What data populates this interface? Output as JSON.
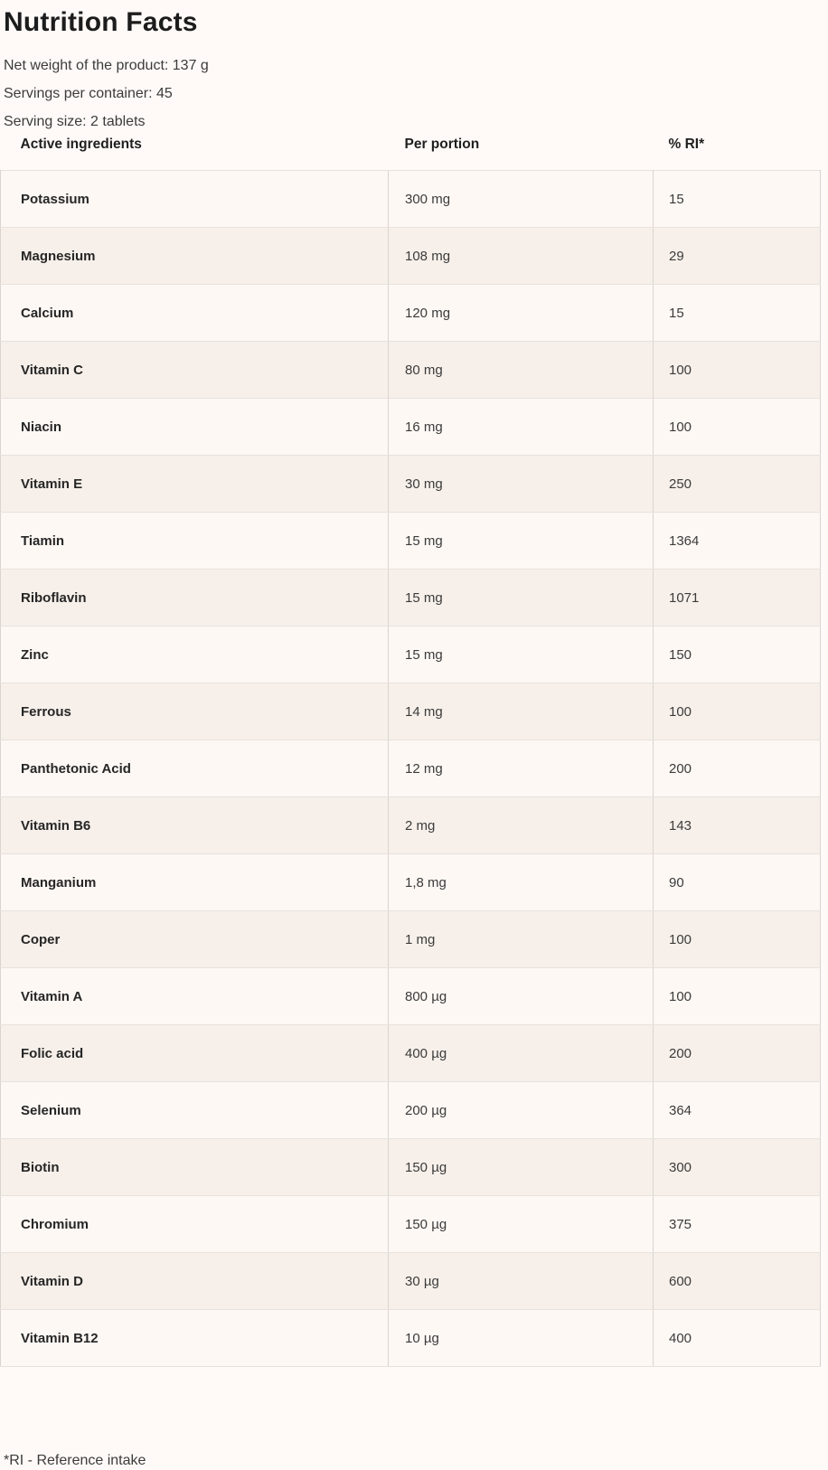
{
  "page": {
    "title": "Nutrition Facts",
    "meta": {
      "net_weight": "Net weight of the product: 137 g",
      "servings_per_container": "Servings per container: 45",
      "serving_size": "Serving size: 2 tablets"
    },
    "footnote": "*RI - Reference intake"
  },
  "colors": {
    "page_bg": "#fffaf7",
    "row_odd_bg": "#fdf8f4",
    "row_even_bg": "#f7f0ea",
    "border_vertical": "#d9d4d1",
    "border_horizontal": "#e7e2de",
    "text_heading": "#1c1c1c",
    "text_value": "#3b3b3b"
  },
  "table": {
    "columns": [
      {
        "label": "Active ingredients"
      },
      {
        "label": "Per portion"
      },
      {
        "label": "% RI*"
      }
    ],
    "rows": [
      {
        "name": "Potassium",
        "per_portion": "300 mg",
        "ri": "15"
      },
      {
        "name": "Magnesium",
        "per_portion": "108 mg",
        "ri": "29"
      },
      {
        "name": "Calcium",
        "per_portion": "120 mg",
        "ri": "15"
      },
      {
        "name": "Vitamin C",
        "per_portion": "80 mg",
        "ri": "100"
      },
      {
        "name": "Niacin",
        "per_portion": "16 mg",
        "ri": "100"
      },
      {
        "name": "Vitamin E",
        "per_portion": "30 mg",
        "ri": "250"
      },
      {
        "name": "Tiamin",
        "per_portion": "15 mg",
        "ri": "1364"
      },
      {
        "name": "Riboflavin",
        "per_portion": "15 mg",
        "ri": "1071"
      },
      {
        "name": "Zinc",
        "per_portion": "15 mg",
        "ri": "150"
      },
      {
        "name": "Ferrous",
        "per_portion": "14 mg",
        "ri": "100"
      },
      {
        "name": "Panthetonic Acid",
        "per_portion": "12 mg",
        "ri": "200"
      },
      {
        "name": "Vitamin B6",
        "per_portion": "2 mg",
        "ri": "143"
      },
      {
        "name": "Manganium",
        "per_portion": "1,8 mg",
        "ri": "90"
      },
      {
        "name": "Coper",
        "per_portion": "1 mg",
        "ri": "100"
      },
      {
        "name": "Vitamin A",
        "per_portion": "800 µg",
        "ri": "100"
      },
      {
        "name": "Folic acid",
        "per_portion": "400 µg",
        "ri": "200"
      },
      {
        "name": "Selenium",
        "per_portion": "200 µg",
        "ri": "364"
      },
      {
        "name": "Biotin",
        "per_portion": "150 µg",
        "ri": "300"
      },
      {
        "name": "Chromium",
        "per_portion": "150 µg",
        "ri": "375"
      },
      {
        "name": "Vitamin D",
        "per_portion": "30 µg",
        "ri": "600"
      },
      {
        "name": "Vitamin B12",
        "per_portion": "10 µg",
        "ri": "400"
      }
    ]
  }
}
